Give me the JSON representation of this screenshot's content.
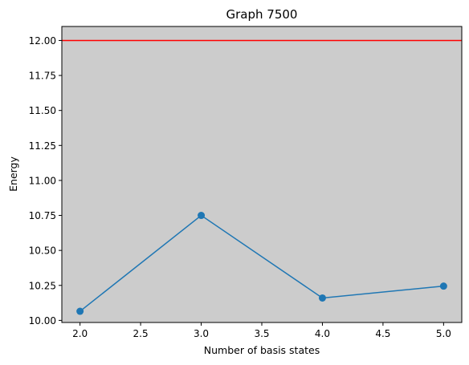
{
  "chart_data": {
    "type": "line",
    "title": "Graph 7500",
    "xlabel": "Number of basis states",
    "ylabel": "Energy",
    "xlim": [
      1.85,
      5.15
    ],
    "ylim": [
      9.985,
      12.1
    ],
    "x_ticks": [
      "2.0",
      "2.5",
      "3.0",
      "3.5",
      "4.0",
      "4.5",
      "5.0"
    ],
    "y_ticks": [
      "10.00",
      "10.25",
      "10.50",
      "10.75",
      "11.00",
      "11.25",
      "11.50",
      "11.75",
      "12.00"
    ],
    "grid": false,
    "background_color": "#cccccc",
    "series": [
      {
        "x": [
          2,
          3,
          4,
          5
        ],
        "y": [
          10.065,
          10.75,
          10.16,
          10.245
        ],
        "color": "#1f77b4",
        "marker": "circle"
      }
    ],
    "reference_lines": [
      {
        "orientation": "horizontal",
        "y": 12.0,
        "color": "#ff0000"
      }
    ]
  }
}
